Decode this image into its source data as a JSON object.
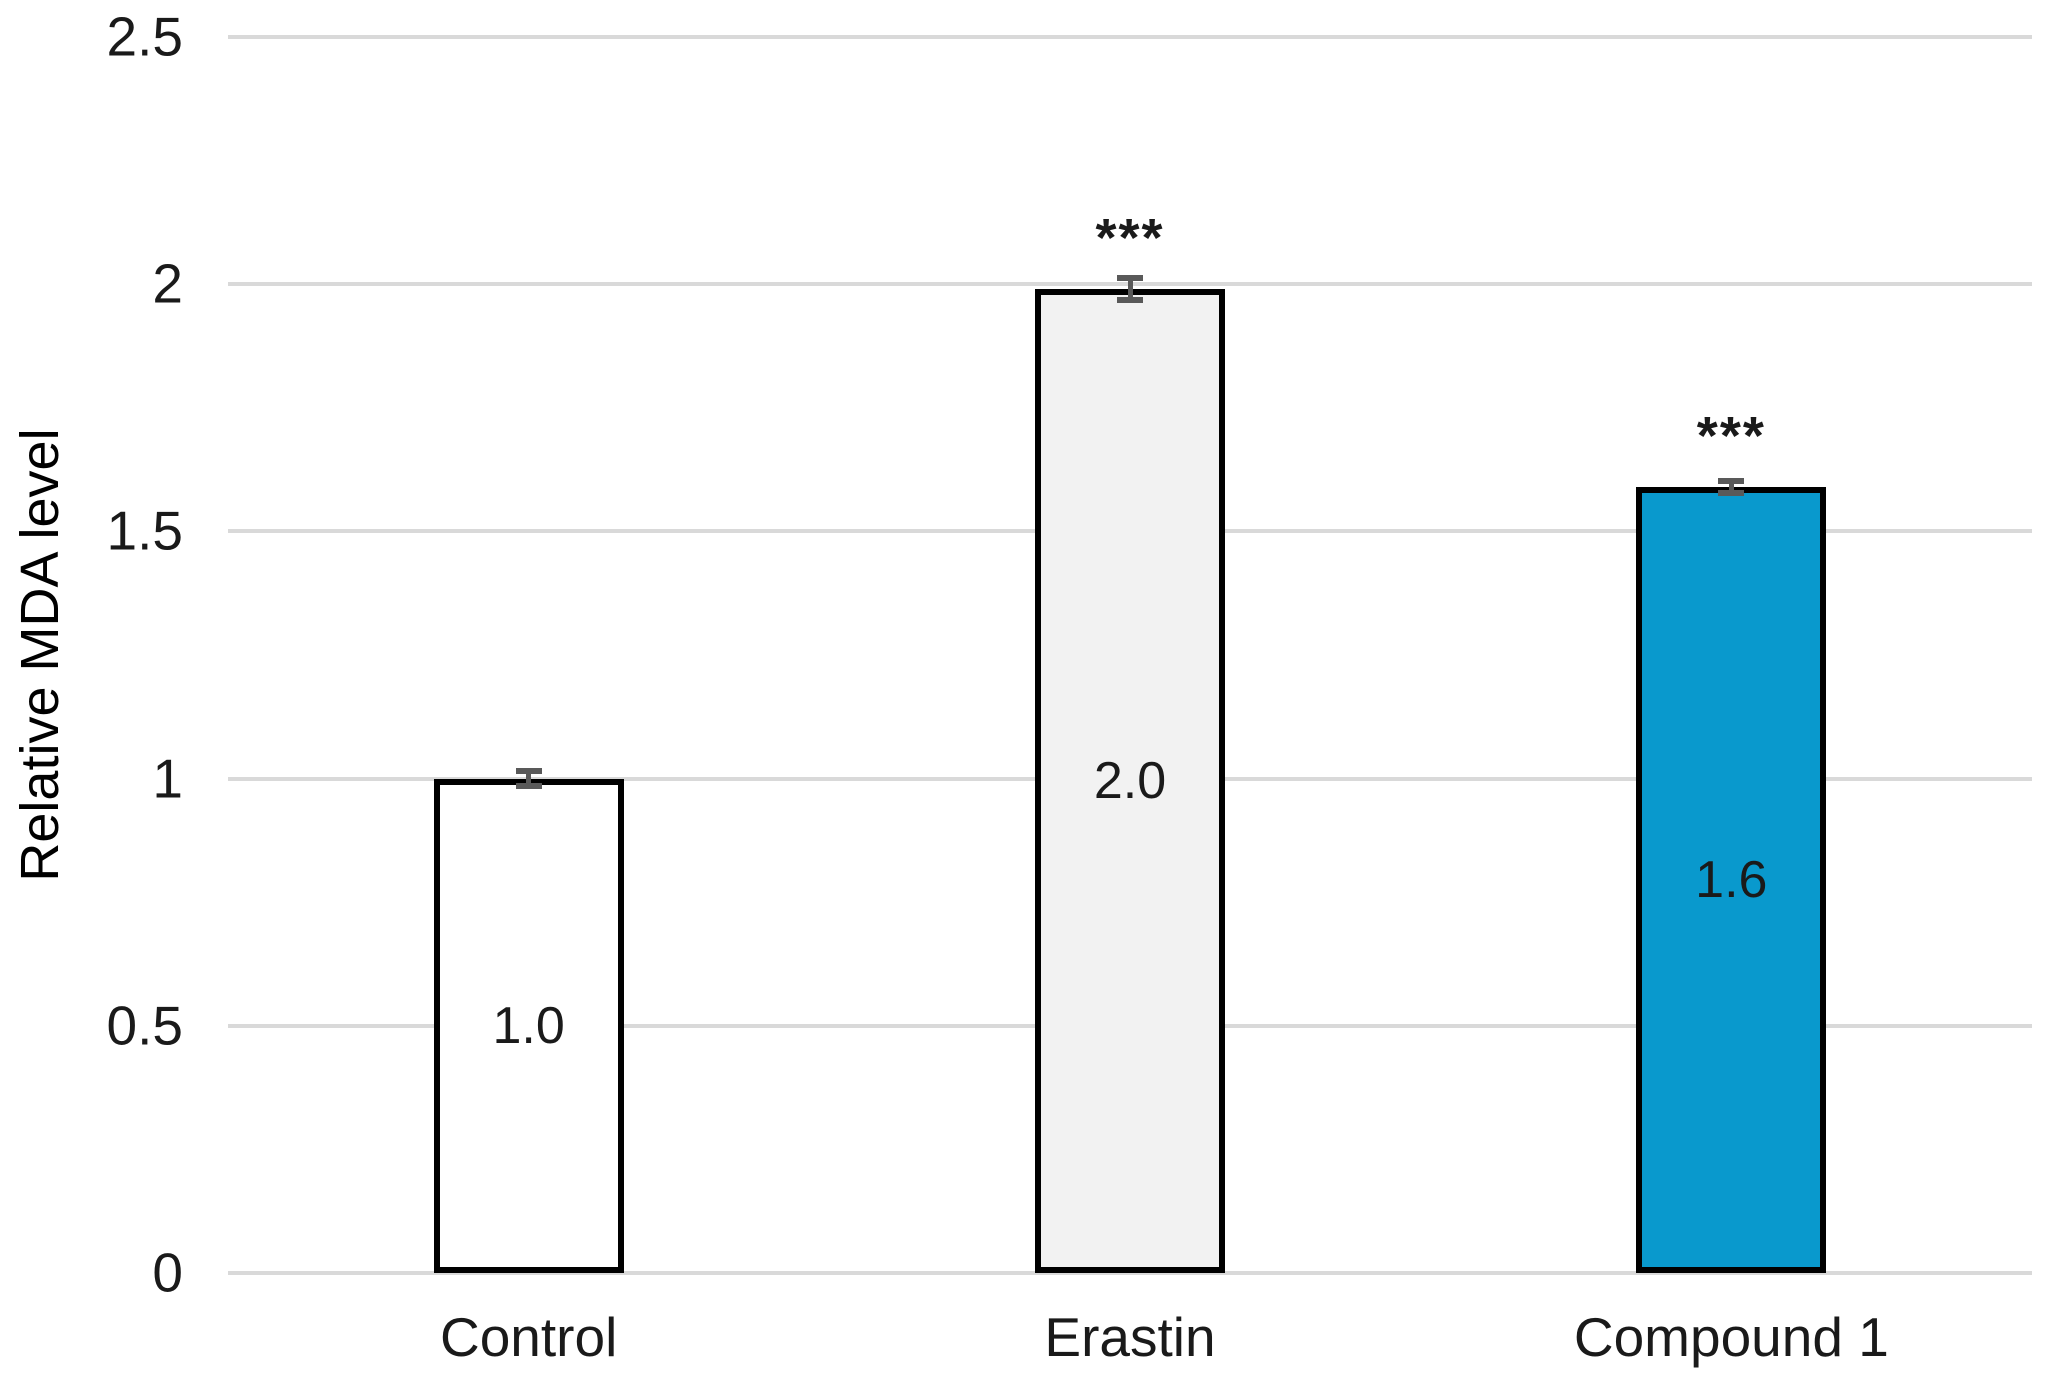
{
  "chart_data": {
    "type": "bar",
    "title": "",
    "ylabel": "Relative MDA level",
    "xlabel": "",
    "categories": [
      "Control",
      "Erastin",
      "Compound 1"
    ],
    "values": [
      1.0,
      1.99,
      1.59
    ],
    "bar_labels": [
      "1.0",
      "2.0",
      "1.6"
    ],
    "errors": [
      0.015,
      0.022,
      0.012
    ],
    "significance": [
      "",
      "***",
      "***"
    ],
    "bar_fill_colors": [
      "#FFFFFF",
      "#F2F2F2",
      "#0999CD"
    ],
    "bar_border_color": "#000000",
    "error_bar_color": "#595959",
    "gridline_color": "#D9D9D9",
    "text_color": "#1A1A1A",
    "yticks": [
      0,
      0.5,
      1,
      1.5,
      2,
      2.5
    ],
    "ytick_labels": [
      "0",
      "0.5",
      "1",
      "1.5",
      "2",
      "2.5"
    ],
    "ylim": [
      0,
      2.5
    ],
    "grid": true,
    "legend": false
  }
}
